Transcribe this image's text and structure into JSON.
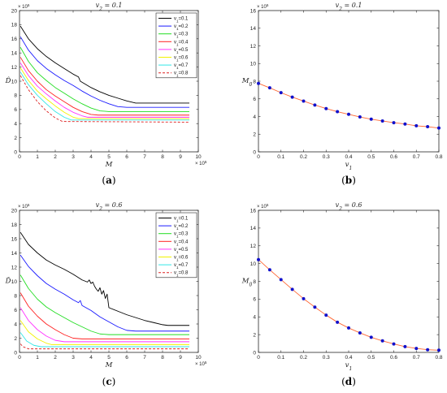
{
  "chart_data": [
    {
      "id": "a",
      "panel_label": "(a)",
      "type": "line",
      "title": "v2 = 0.1",
      "xlabel": "M",
      "ylabel": "D̂",
      "xlim": [
        0,
        10
      ],
      "ylim": [
        0,
        20
      ],
      "x_exponent": "× 10^5",
      "y_exponent": "× 10^5",
      "x_ticks": [
        0,
        1,
        2,
        3,
        4,
        5,
        6,
        7,
        8,
        9,
        10
      ],
      "y_ticks": [
        0,
        2,
        4,
        6,
        8,
        10,
        12,
        14,
        16,
        18,
        20
      ],
      "grid": false,
      "legend_position": "top-right",
      "series": [
        {
          "name": "v1=0.1",
          "color": "#000000",
          "dash": false,
          "x": [
            0.05,
            0.5,
            1.0,
            1.5,
            2.0,
            2.5,
            3.0,
            3.3,
            3.4,
            4.0,
            4.5,
            5.0,
            5.5,
            6.0,
            6.5,
            7.0,
            9.5
          ],
          "y": [
            17.8,
            16.0,
            14.6,
            13.5,
            12.6,
            11.8,
            11.0,
            10.6,
            10.0,
            9.1,
            8.5,
            8.0,
            7.6,
            7.2,
            6.9,
            6.9,
            6.9
          ]
        },
        {
          "name": "v1=0.2",
          "color": "#1a1aff",
          "dash": false,
          "x": [
            0.05,
            0.5,
            1.0,
            1.5,
            2.0,
            2.5,
            3.0,
            3.5,
            4.0,
            4.5,
            5.0,
            5.5,
            6.0,
            9.5
          ],
          "y": [
            16.3,
            14.4,
            12.9,
            11.8,
            10.9,
            10.1,
            9.4,
            8.6,
            7.9,
            7.3,
            6.8,
            6.4,
            6.3,
            6.3
          ]
        },
        {
          "name": "v1=0.3",
          "color": "#22dd22",
          "dash": false,
          "x": [
            0.05,
            0.5,
            1.0,
            1.5,
            2.0,
            2.5,
            3.0,
            3.5,
            4.0,
            4.5,
            5.0,
            9.5
          ],
          "y": [
            14.8,
            12.8,
            11.2,
            10.1,
            9.1,
            8.3,
            7.5,
            6.8,
            6.2,
            5.8,
            5.7,
            5.7
          ]
        },
        {
          "name": "v1=0.4",
          "color": "#ff2222",
          "dash": false,
          "x": [
            0.05,
            0.5,
            1.0,
            1.5,
            2.0,
            2.5,
            3.0,
            3.5,
            4.0,
            4.4,
            9.5
          ],
          "y": [
            13.4,
            11.5,
            10.0,
            8.8,
            7.9,
            7.1,
            6.3,
            5.7,
            5.3,
            5.2,
            5.2
          ]
        },
        {
          "name": "v1=0.5",
          "color": "#ff33ff",
          "dash": false,
          "x": [
            0.05,
            0.5,
            1.0,
            1.5,
            2.0,
            2.5,
            3.0,
            3.5,
            3.8,
            9.5
          ],
          "y": [
            12.6,
            10.8,
            9.3,
            8.2,
            7.2,
            6.3,
            5.6,
            5.1,
            4.9,
            4.9
          ]
        },
        {
          "name": "v1=0.6",
          "color": "#f2f200",
          "dash": false,
          "x": [
            0.05,
            0.5,
            1.0,
            1.5,
            2.0,
            2.5,
            3.0,
            3.3,
            9.5
          ],
          "y": [
            11.9,
            10.1,
            8.6,
            7.5,
            6.5,
            5.6,
            4.9,
            4.7,
            4.7
          ]
        },
        {
          "name": "v1=0.7",
          "color": "#33e6e6",
          "dash": false,
          "x": [
            0.05,
            0.5,
            1.0,
            1.5,
            2.0,
            2.5,
            2.9,
            9.5
          ],
          "y": [
            11.3,
            9.5,
            8.0,
            6.8,
            5.7,
            4.9,
            4.5,
            4.5
          ]
        },
        {
          "name": "v1=0.8",
          "color": "#dd2222",
          "dash": true,
          "x": [
            0.05,
            0.5,
            1.0,
            1.5,
            2.0,
            2.4,
            9.5
          ],
          "y": [
            10.8,
            8.8,
            7.1,
            5.8,
            4.8,
            4.3,
            4.2
          ]
        }
      ]
    },
    {
      "id": "b",
      "panel_label": "(b)",
      "type": "line",
      "title": "v2 = 0.1",
      "xlabel": "v1",
      "ylabel": "M0",
      "xlim": [
        0,
        0.8
      ],
      "ylim": [
        0,
        16
      ],
      "y_exponent": "× 10^5",
      "x_ticks": [
        0,
        0.1,
        0.2,
        0.3,
        0.4,
        0.5,
        0.6,
        0.7,
        0.8
      ],
      "y_ticks": [
        0,
        2,
        4,
        6,
        8,
        10,
        12,
        14,
        16
      ],
      "grid": false,
      "series": [
        {
          "line_color": "#ff6633",
          "marker_color": "#1111cc",
          "x": [
            0,
            0.05,
            0.1,
            0.15,
            0.2,
            0.25,
            0.3,
            0.35,
            0.4,
            0.45,
            0.5,
            0.55,
            0.6,
            0.65,
            0.7,
            0.75,
            0.8
          ],
          "y": [
            7.75,
            7.25,
            6.7,
            6.2,
            5.75,
            5.3,
            4.9,
            4.55,
            4.25,
            3.95,
            3.7,
            3.5,
            3.3,
            3.15,
            2.95,
            2.85,
            2.7
          ]
        }
      ]
    },
    {
      "id": "c",
      "panel_label": "(c)",
      "type": "line",
      "title": "v2 = 0.6",
      "xlabel": "M",
      "ylabel": "D̂",
      "xlim": [
        0,
        10
      ],
      "ylim": [
        0,
        20
      ],
      "x_exponent": "× 10^5",
      "y_exponent": "× 10^5",
      "x_ticks": [
        0,
        1,
        2,
        3,
        4,
        5,
        6,
        7,
        8,
        9,
        10
      ],
      "y_ticks": [
        0,
        2,
        4,
        6,
        8,
        10,
        12,
        14,
        16,
        18,
        20
      ],
      "grid": false,
      "legend_position": "top-right",
      "series": [
        {
          "name": "v1=0.1",
          "color": "#000000",
          "dash": false,
          "x": [
            0.05,
            0.5,
            1.0,
            1.5,
            2.0,
            2.5,
            3.0,
            3.5,
            3.8,
            3.9,
            4.0,
            4.1,
            4.2,
            4.3,
            4.4,
            4.5,
            4.6,
            4.7,
            4.8,
            4.9,
            5.0,
            5.5,
            6.0,
            6.5,
            7.0,
            7.5,
            8.0,
            8.3,
            9.5
          ],
          "y": [
            16.9,
            15.2,
            14.0,
            13.0,
            12.3,
            11.7,
            11.0,
            10.2,
            9.9,
            10.2,
            9.7,
            9.9,
            9.3,
            8.9,
            8.6,
            9.1,
            8.2,
            8.7,
            7.6,
            8.2,
            6.3,
            5.8,
            5.3,
            4.9,
            4.5,
            4.2,
            3.9,
            3.8,
            3.8
          ]
        },
        {
          "name": "v1=0.2",
          "color": "#1a1aff",
          "dash": false,
          "x": [
            0.05,
            0.5,
            1.0,
            1.5,
            2.0,
            2.5,
            3.0,
            3.3,
            3.4,
            3.5,
            4.0,
            4.5,
            5.0,
            5.5,
            6.0,
            6.5,
            9.5
          ],
          "y": [
            13.7,
            12.1,
            10.8,
            9.7,
            8.9,
            8.2,
            7.4,
            7.0,
            7.3,
            6.6,
            5.9,
            5.0,
            4.3,
            3.6,
            3.1,
            3.0,
            3.0
          ]
        },
        {
          "name": "v1=0.3",
          "color": "#22dd22",
          "dash": false,
          "x": [
            0.05,
            0.5,
            1.0,
            1.5,
            2.0,
            2.5,
            3.0,
            3.5,
            4.0,
            4.5,
            5.0,
            9.5
          ],
          "y": [
            10.9,
            9.0,
            7.5,
            6.4,
            5.6,
            4.9,
            4.2,
            3.6,
            3.0,
            2.6,
            2.5,
            2.5
          ]
        },
        {
          "name": "v1=0.4",
          "color": "#ff2222",
          "dash": false,
          "x": [
            0.05,
            0.5,
            1.0,
            1.5,
            2.0,
            2.5,
            3.0,
            3.5,
            9.5
          ],
          "y": [
            8.4,
            6.5,
            5.1,
            4.0,
            3.2,
            2.5,
            2.0,
            1.9,
            1.9
          ]
        },
        {
          "name": "v1=0.5",
          "color": "#ff33ff",
          "dash": false,
          "x": [
            0.05,
            0.5,
            1.0,
            1.5,
            2.0,
            2.5,
            9.5
          ],
          "y": [
            6.3,
            4.5,
            3.2,
            2.3,
            1.7,
            1.5,
            1.5
          ]
        },
        {
          "name": "v1=0.6",
          "color": "#f2f200",
          "dash": false,
          "x": [
            0.05,
            0.5,
            1.0,
            1.5,
            1.8,
            9.5
          ],
          "y": [
            4.5,
            2.9,
            1.9,
            1.3,
            1.1,
            1.1
          ]
        },
        {
          "name": "v1=0.7",
          "color": "#33e6e6",
          "dash": false,
          "x": [
            0.05,
            0.4,
            0.8,
            1.2,
            9.5
          ],
          "y": [
            2.8,
            1.6,
            1.0,
            0.8,
            0.8
          ]
        },
        {
          "name": "v1=0.8",
          "color": "#dd2222",
          "dash": true,
          "x": [
            0.05,
            0.2,
            0.5,
            9.5
          ],
          "y": [
            1.2,
            0.8,
            0.5,
            0.5
          ]
        }
      ]
    },
    {
      "id": "d",
      "panel_label": "(d)",
      "type": "line",
      "title": "v2 = 0.6",
      "xlabel": "v1",
      "ylabel": "M0",
      "xlim": [
        0,
        0.8
      ],
      "ylim": [
        0,
        16
      ],
      "y_exponent": "× 10^5",
      "x_ticks": [
        0,
        0.1,
        0.2,
        0.3,
        0.4,
        0.5,
        0.6,
        0.7,
        0.8
      ],
      "y_ticks": [
        0,
        2,
        4,
        6,
        8,
        10,
        12,
        14,
        16
      ],
      "grid": false,
      "series": [
        {
          "line_color": "#ff6633",
          "marker_color": "#1111cc",
          "x": [
            0,
            0.05,
            0.1,
            0.15,
            0.2,
            0.25,
            0.3,
            0.35,
            0.4,
            0.45,
            0.5,
            0.55,
            0.6,
            0.65,
            0.7,
            0.75,
            0.8
          ],
          "y": [
            10.45,
            9.3,
            8.2,
            7.1,
            6.05,
            5.1,
            4.2,
            3.4,
            2.75,
            2.2,
            1.7,
            1.3,
            0.95,
            0.65,
            0.45,
            0.3,
            0.25
          ]
        }
      ]
    }
  ]
}
